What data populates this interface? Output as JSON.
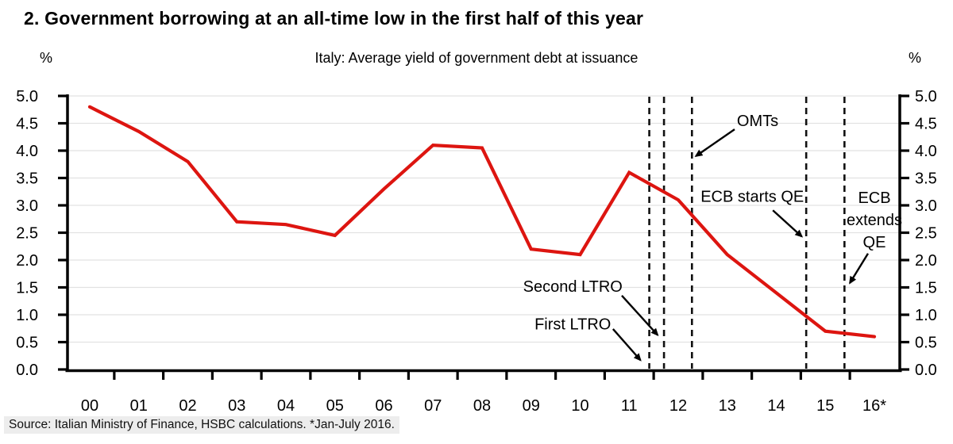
{
  "page": {
    "title": "2. Government borrowing at an all-time low in the first half of this year",
    "source": "Source: Italian Ministry of Finance, HSBC calculations. *Jan-July 2016."
  },
  "chart_data": {
    "type": "line",
    "title": "Italy: Average yield of government debt at issuance",
    "unit_label_left": "%",
    "unit_label_right": "%",
    "categories": [
      "00",
      "01",
      "02",
      "03",
      "04",
      "05",
      "06",
      "07",
      "08",
      "09",
      "10",
      "11",
      "12",
      "13",
      "14",
      "15",
      "16*"
    ],
    "series": [
      {
        "name": "Italy average yield of government debt at issuance",
        "color": "#dd1510",
        "values": [
          4.8,
          4.35,
          3.8,
          2.7,
          2.65,
          2.45,
          3.3,
          4.1,
          4.05,
          2.2,
          2.1,
          3.6,
          3.1,
          2.1,
          1.4,
          0.7,
          0.6
        ]
      }
    ],
    "ylim": [
      0.0,
      5.0
    ],
    "ytick_step": 0.5,
    "ytick_labels": [
      "0.0",
      "0.5",
      "1.0",
      "1.5",
      "2.0",
      "2.5",
      "3.0",
      "3.5",
      "4.0",
      "4.5",
      "5.0"
    ],
    "grid": "horizontal",
    "legend_position": "none",
    "event_lines": [
      {
        "name": "first-ltro",
        "label": "First LTRO",
        "x": 11.41
      },
      {
        "name": "second-ltro",
        "label": "Second LTRO",
        "x": 11.71
      },
      {
        "name": "omts",
        "label": "OMTs",
        "x": 12.28
      },
      {
        "name": "ecb-starts-qe",
        "label": "ECB starts QE",
        "x": 14.61
      },
      {
        "name": "ecb-extends-qe",
        "label": "ECB extends QE",
        "x": 15.39
      }
    ],
    "annotations": [
      {
        "name": "omts",
        "lines": [
          "OMTs"
        ],
        "label_x": 13.62,
        "label_y": 4.55,
        "arrow_from_x": 13.15,
        "arrow_from_y": 4.39,
        "arrow_to_x": 12.36,
        "arrow_to_y": 3.9
      },
      {
        "name": "ecb-starts-qe",
        "lines": [
          "ECB starts QE"
        ],
        "label_x": 13.51,
        "label_y": 3.17,
        "arrow_from_x": 13.93,
        "arrow_from_y": 2.91,
        "arrow_to_x": 14.52,
        "arrow_to_y": 2.43
      },
      {
        "name": "ecb-extends-qe",
        "lines": [
          "ECB",
          "extends",
          "QE"
        ],
        "label_x": 16.0,
        "label_y": 2.74,
        "arrow_from_x": 15.87,
        "arrow_from_y": 2.12,
        "arrow_to_x": 15.5,
        "arrow_to_y": 1.58
      },
      {
        "name": "second-ltro",
        "lines": [
          "Second LTRO"
        ],
        "label_x": 9.85,
        "label_y": 1.52,
        "arrow_from_x": 10.85,
        "arrow_from_y": 1.35,
        "arrow_to_x": 11.58,
        "arrow_to_y": 0.63
      },
      {
        "name": "first-ltro",
        "lines": [
          "First LTRO"
        ],
        "label_x": 9.85,
        "label_y": 0.83,
        "arrow_from_x": 10.67,
        "arrow_from_y": 0.74,
        "arrow_to_x": 11.23,
        "arrow_to_y": 0.17
      }
    ],
    "colors": {
      "line": "#dd1510",
      "axis": "#000000",
      "grid": "#e2e2e2",
      "event_line": "#111111"
    }
  }
}
